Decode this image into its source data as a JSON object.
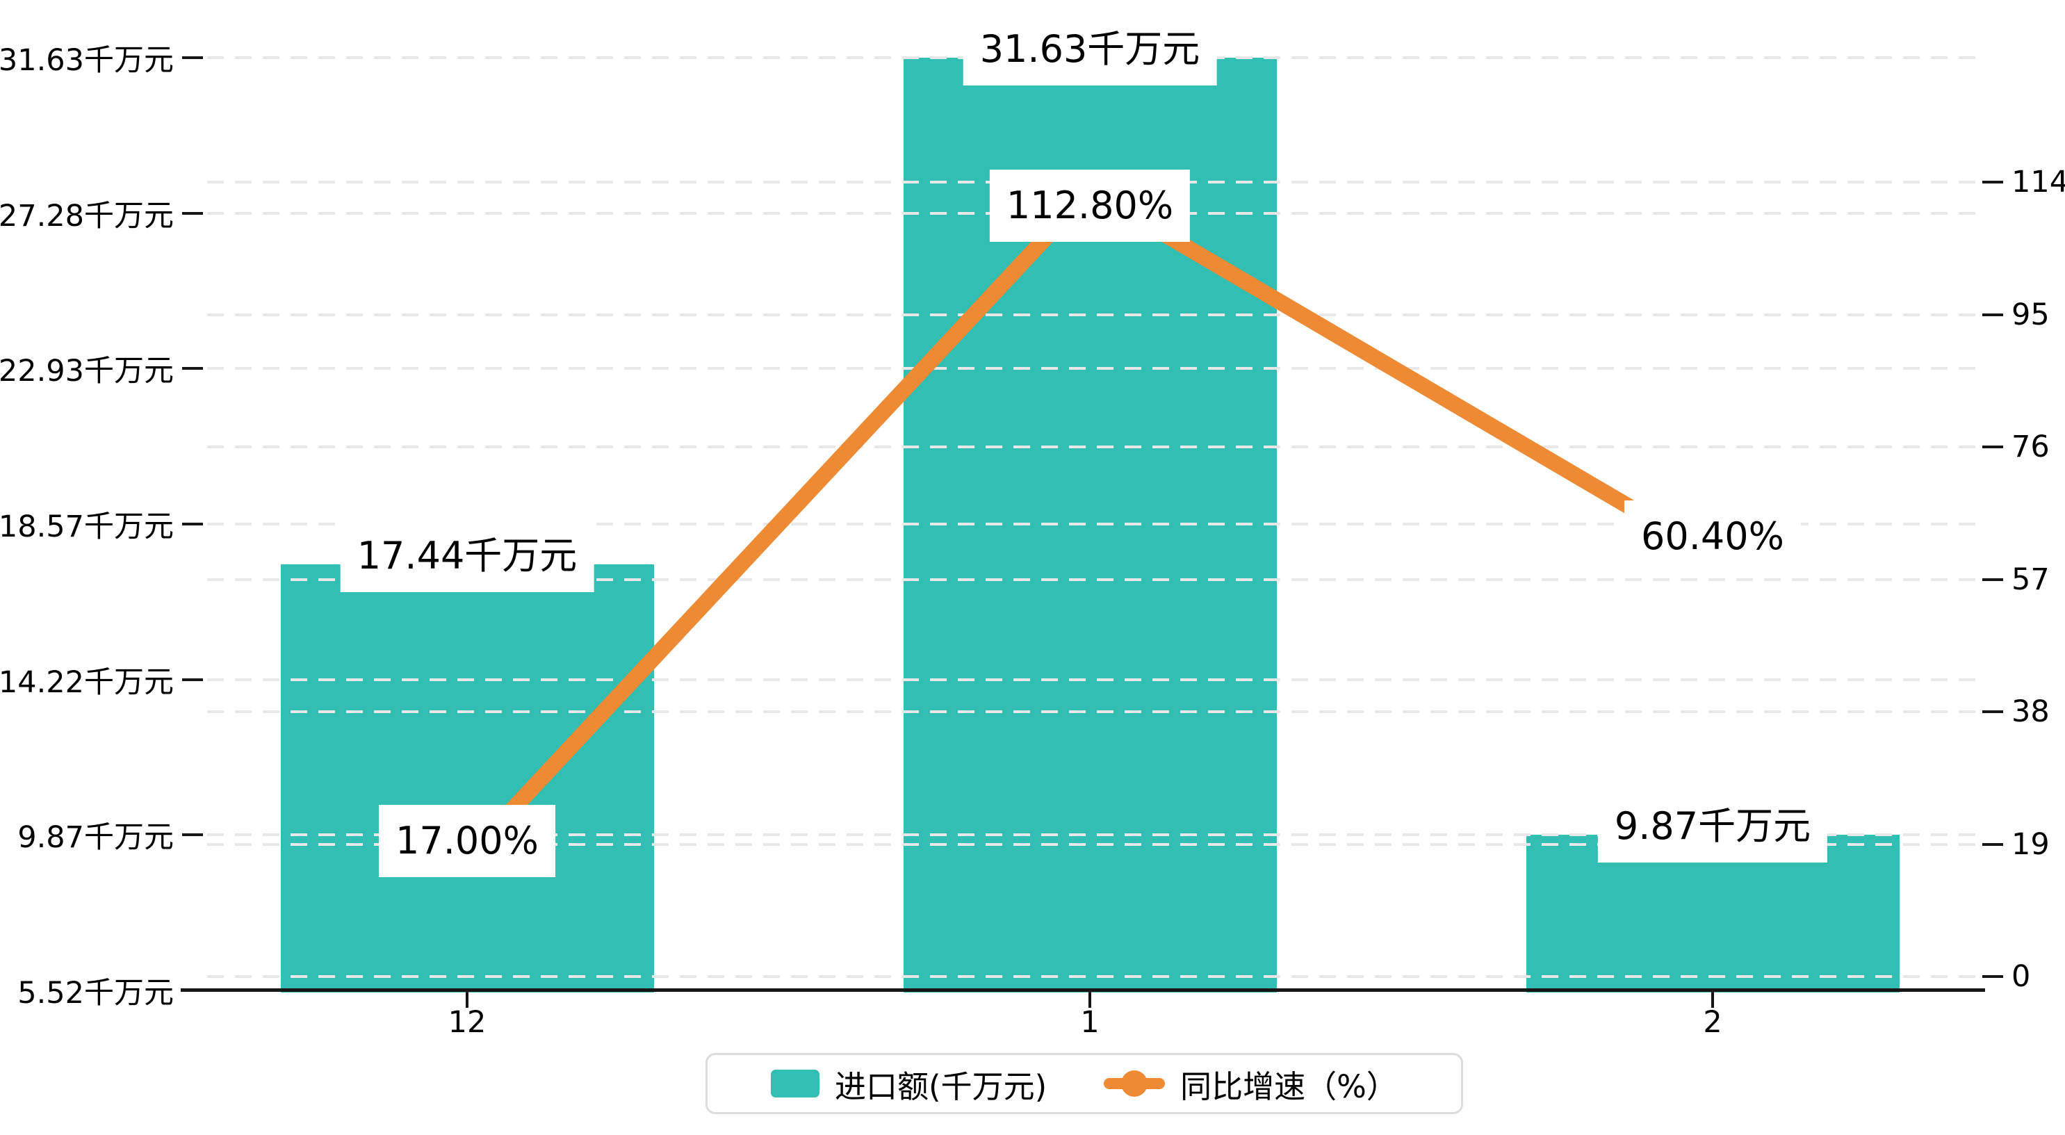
{
  "chart_data": {
    "type": "bar",
    "categories": [
      "12",
      "1",
      "2"
    ],
    "series": [
      {
        "name": "进口额(千万元)",
        "type": "bar",
        "y_axis": "left",
        "values": [
          17.44,
          31.63,
          9.87
        ],
        "data_labels": [
          "17.44千万元",
          "31.63千万元",
          "9.87千万元"
        ],
        "color": "#32beb3"
      },
      {
        "name": "同比增速（%）",
        "type": "line",
        "y_axis": "right",
        "values": [
          17.0,
          112.8,
          60.4
        ],
        "data_labels": [
          "17.00%",
          "112.80%",
          "60.40%"
        ],
        "color": "#ee8a33"
      }
    ],
    "x_axis": {
      "tick_labels": [
        "12",
        "1",
        "2"
      ]
    },
    "y_axis_left": {
      "tick_labels": [
        "31.63千万元",
        "27.28千万元",
        "22.93千万元",
        "18.57千万元",
        "14.22千万元",
        "9.87千万元",
        "5.52千万元"
      ],
      "min": 5.52,
      "max": 31.63
    },
    "y_axis_right": {
      "tick_labels": [
        "114",
        "95",
        "76",
        "57",
        "38",
        "19",
        "0"
      ],
      "min": 0,
      "max": 114
    },
    "legend": {
      "position": "bottom",
      "items": [
        {
          "label": "进口额(千万元)",
          "marker": "bar-swatch"
        },
        {
          "label": "同比增速（%）",
          "marker": "line-marker"
        }
      ]
    },
    "grid": {
      "horizontal_dashed": true,
      "legend_position": "bottom"
    }
  },
  "colors": {
    "bar": "#32beb3",
    "line": "#ee8a33",
    "grid": "#e8e8e8",
    "axis": "#161616",
    "text": "#000000",
    "label_bg": "#ffffff",
    "legend_border": "#dcdcdc",
    "background": "#ffffff"
  }
}
